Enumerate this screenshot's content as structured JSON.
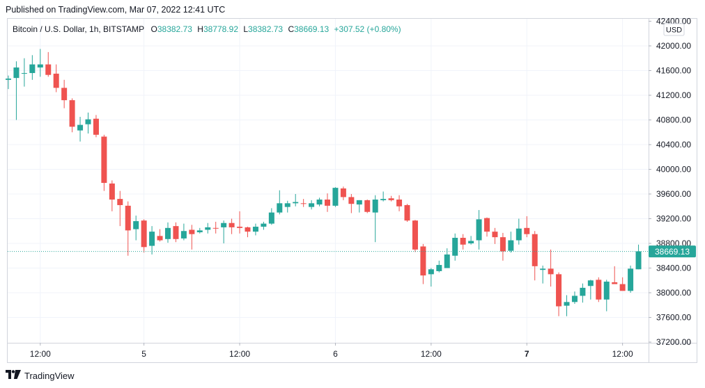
{
  "header": {
    "published": "Published on TradingView.com, Mar 07, 2022 12:41 UTC"
  },
  "legend": {
    "symbol": "Bitcoin / U.S. Dollar, 1h, BITSTAMP",
    "o_label": "O",
    "o_value": "38382.73",
    "h_label": "H",
    "h_value": "38778.92",
    "l_label": "L",
    "l_value": "38382.73",
    "c_label": "C",
    "c_value": "38669.13",
    "change": "+307.52 (+0.80%)"
  },
  "currency_badge": "USD",
  "footer": {
    "brand": "TradingView"
  },
  "colors": {
    "up": "#26a69a",
    "down": "#ef5350",
    "grid": "#f0f3fa",
    "axis": "#131722"
  },
  "chart_data": {
    "type": "candlestick",
    "ylim": [
      37200,
      42400
    ],
    "y_ticks": [
      "42400.00",
      "42000.00",
      "41600.00",
      "41200.00",
      "40800.00",
      "40400.00",
      "40000.00",
      "39600.00",
      "39200.00",
      "38800.00",
      "38400.00",
      "38000.00",
      "37600.00",
      "37200.00"
    ],
    "x_ticks": [
      "12:00",
      "5",
      "12:00",
      "6",
      "12:00",
      "7",
      "12:00"
    ],
    "x_bold_ticks": [
      "7"
    ],
    "last_price": 38669.13,
    "last_price_label": "38669.13",
    "candles": [
      [
        41450,
        41520,
        41300,
        41470
      ],
      [
        41480,
        41750,
        40800,
        41650
      ],
      [
        41560,
        41800,
        41340,
        41560
      ],
      [
        41560,
        41850,
        41450,
        41700
      ],
      [
        41650,
        41950,
        41500,
        41700
      ],
      [
        41700,
        41900,
        41500,
        41530
      ],
      [
        41550,
        41700,
        41250,
        41320
      ],
      [
        41320,
        41450,
        40990,
        41120
      ],
      [
        41120,
        41150,
        40600,
        40690
      ],
      [
        40630,
        40850,
        40450,
        40720
      ],
      [
        40730,
        40920,
        40580,
        40810
      ],
      [
        40820,
        40880,
        40520,
        40560
      ],
      [
        40530,
        40560,
        39650,
        39780
      ],
      [
        39770,
        39820,
        39320,
        39510
      ],
      [
        39520,
        39650,
        39080,
        39420
      ],
      [
        39410,
        39480,
        38600,
        39010
      ],
      [
        39030,
        39250,
        38850,
        39160
      ],
      [
        39170,
        39190,
        38650,
        38740
      ],
      [
        38760,
        39080,
        38620,
        38990
      ],
      [
        38920,
        39030,
        38830,
        38850
      ],
      [
        38870,
        39140,
        38810,
        39050
      ],
      [
        39080,
        39140,
        38820,
        38870
      ],
      [
        38880,
        39120,
        38850,
        39000
      ],
      [
        39020,
        39100,
        38700,
        38950
      ],
      [
        38980,
        39050,
        38960,
        39010
      ],
      [
        39020,
        39130,
        38960,
        39060
      ],
      [
        39050,
        39150,
        38960,
        39040
      ],
      [
        39060,
        39170,
        38800,
        39130
      ],
      [
        39130,
        39200,
        38950,
        39060
      ],
      [
        39070,
        39320,
        38960,
        39050
      ],
      [
        39060,
        39070,
        38900,
        38990
      ],
      [
        38990,
        39120,
        38930,
        39070
      ],
      [
        39070,
        39150,
        39020,
        39120
      ],
      [
        39120,
        39370,
        39100,
        39300
      ],
      [
        39300,
        39660,
        39270,
        39450
      ],
      [
        39390,
        39490,
        39300,
        39450
      ],
      [
        39450,
        39600,
        39400,
        39470
      ],
      [
        39450,
        39520,
        39390,
        39440
      ],
      [
        39390,
        39500,
        39350,
        39450
      ],
      [
        39430,
        39540,
        39400,
        39510
      ],
      [
        39510,
        39610,
        39310,
        39410
      ],
      [
        39410,
        39710,
        39390,
        39700
      ],
      [
        39690,
        39720,
        39500,
        39550
      ],
      [
        39550,
        39600,
        39290,
        39440
      ],
      [
        39430,
        39500,
        39300,
        39500
      ],
      [
        39500,
        39510,
        39290,
        39310
      ],
      [
        39300,
        39580,
        38820,
        39510
      ],
      [
        39500,
        39640,
        39480,
        39520
      ],
      [
        39530,
        39570,
        39480,
        39500
      ],
      [
        39510,
        39580,
        39320,
        39400
      ],
      [
        39420,
        39440,
        39150,
        39170
      ],
      [
        39170,
        39180,
        38660,
        38700
      ],
      [
        38750,
        38790,
        38140,
        38280
      ],
      [
        38300,
        38400,
        38100,
        38380
      ],
      [
        38350,
        38520,
        38330,
        38450
      ],
      [
        38400,
        38720,
        38400,
        38620
      ],
      [
        38600,
        38960,
        38520,
        38890
      ],
      [
        38890,
        38950,
        38700,
        38780
      ],
      [
        38800,
        38920,
        38780,
        38840
      ],
      [
        38850,
        39340,
        38700,
        39190
      ],
      [
        39210,
        39220,
        38910,
        38990
      ],
      [
        38990,
        39050,
        38790,
        38900
      ],
      [
        38900,
        38970,
        38520,
        38670
      ],
      [
        38680,
        38990,
        38650,
        38850
      ],
      [
        38850,
        39200,
        38780,
        39040
      ],
      [
        39050,
        39240,
        38900,
        38950
      ],
      [
        38950,
        39000,
        38200,
        38430
      ],
      [
        38370,
        38440,
        38150,
        38390
      ],
      [
        38390,
        38700,
        38100,
        38300
      ],
      [
        38300,
        38330,
        37620,
        37780
      ],
      [
        37790,
        37960,
        37620,
        37850
      ],
      [
        37850,
        38020,
        37820,
        37950
      ],
      [
        37950,
        38150,
        37840,
        38080
      ],
      [
        38110,
        38210,
        37890,
        38200
      ],
      [
        38210,
        38250,
        37850,
        37890
      ],
      [
        37890,
        38210,
        37700,
        38180
      ],
      [
        38170,
        38430,
        38150,
        38140
      ],
      [
        38140,
        38250,
        38040,
        38030
      ],
      [
        38030,
        38440,
        38000,
        38390
      ],
      [
        38380,
        38780,
        38380,
        38670
      ]
    ]
  }
}
